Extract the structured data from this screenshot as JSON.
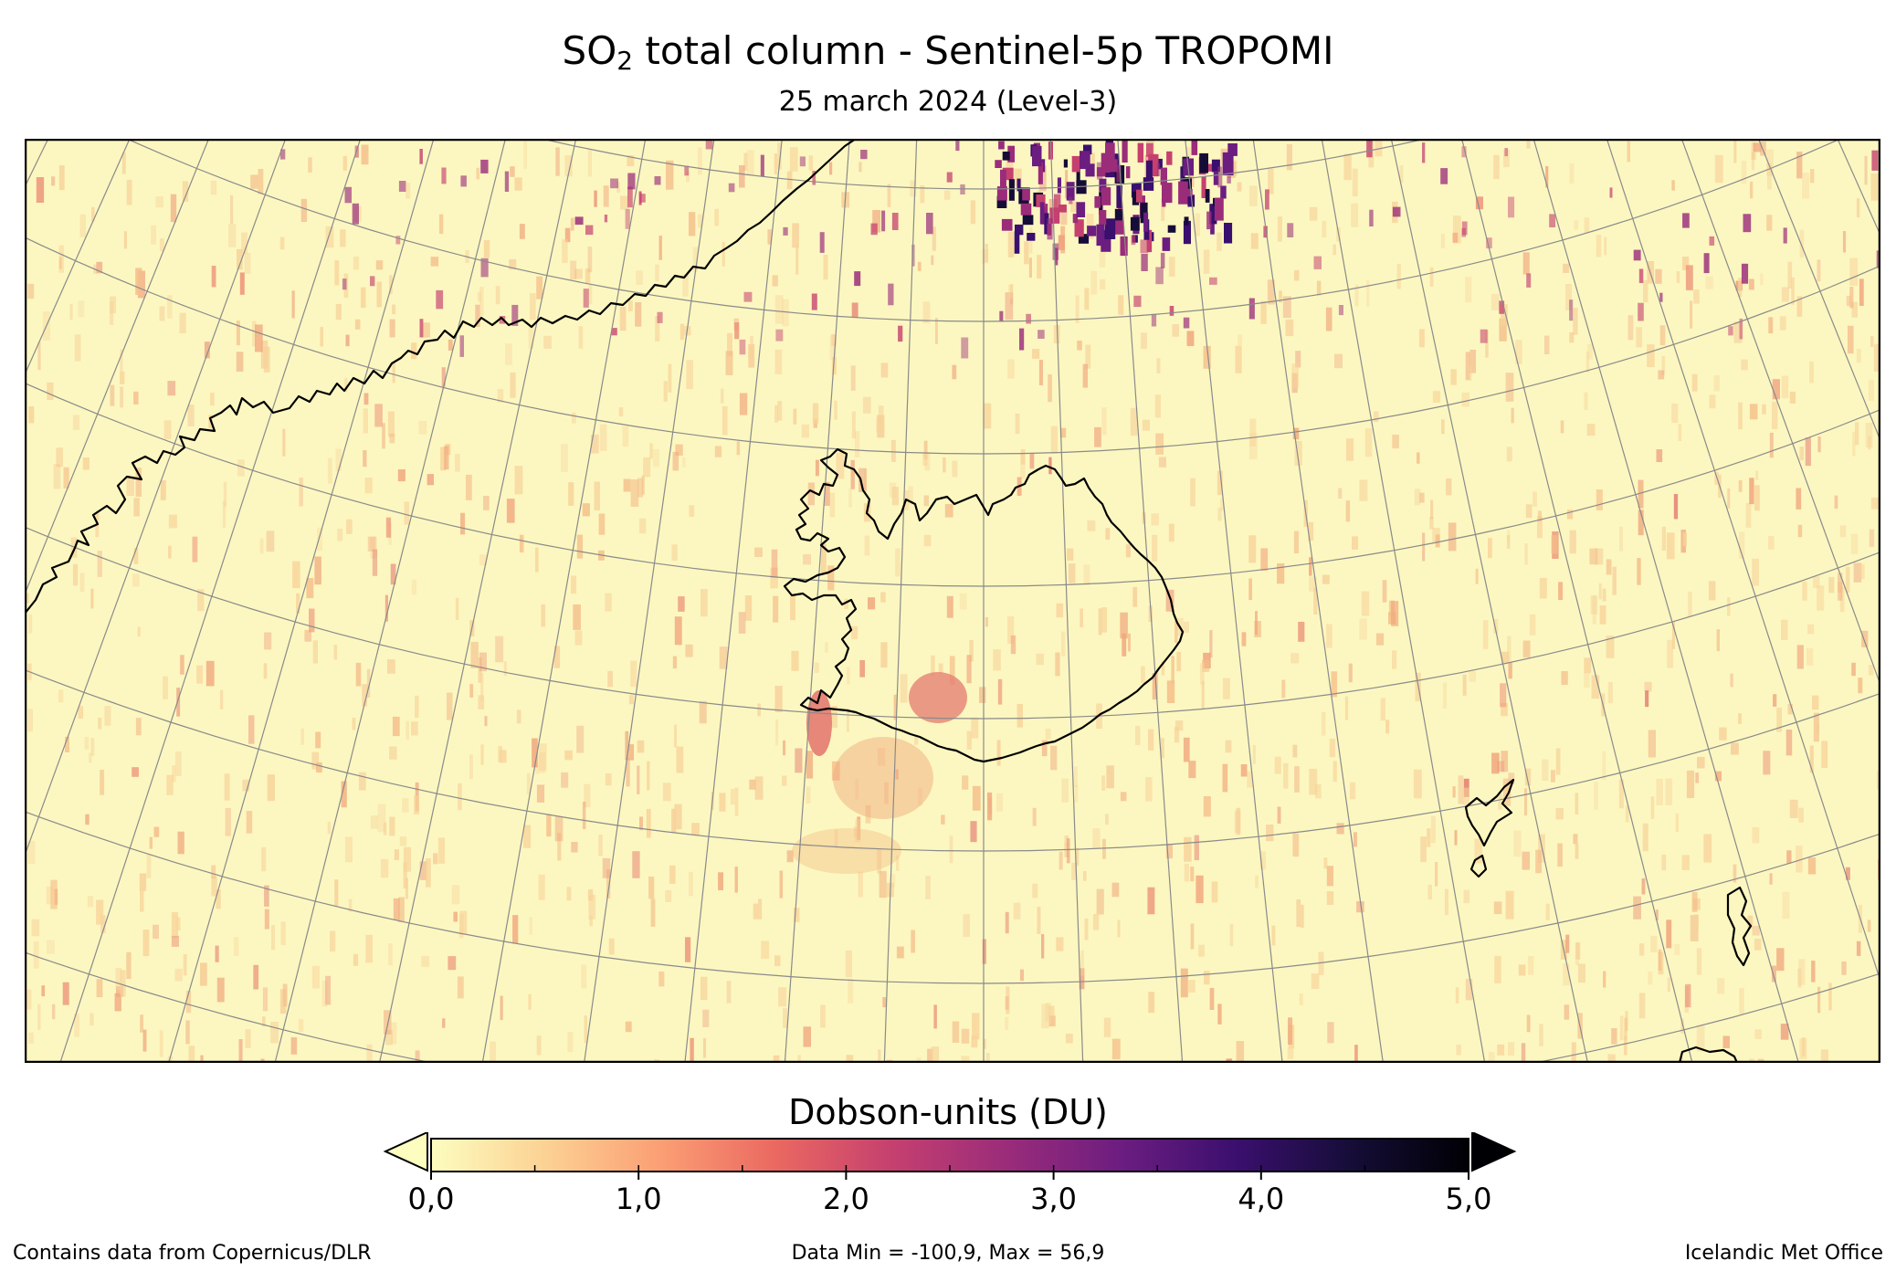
{
  "header": {
    "title_prefix": "SO",
    "title_sub": "2",
    "title_suffix": " total column - Sentinel-5p TROPOMI",
    "subtitle": "25 march 2024 (Level-3)"
  },
  "colorbar": {
    "label": "Dobson-units (DU)",
    "min": 0,
    "max": 5,
    "ticks": [
      "0,0",
      "1,0",
      "2,0",
      "3,0",
      "4,0",
      "5,0"
    ],
    "colormap": "magma_r",
    "extend": "both",
    "colors": [
      "#fcfdbf",
      "#fcd193",
      "#fb9e74",
      "#ea6861",
      "#c5406f",
      "#9a2c7a",
      "#6b1d80",
      "#3a0f6d",
      "#150d37",
      "#000004"
    ]
  },
  "footer": {
    "left": "Contains data from Copernicus/DLR",
    "center": "Data Min = -100,9, Max = 56,9",
    "right": "Icelandic Met Office"
  },
  "map": {
    "background_color": "#fcf7c0",
    "coastline_color": "#000000",
    "graticule_color": "#8a8a8a",
    "regions": [
      "Greenland (east coast)",
      "Iceland",
      "Faroe Islands",
      "Shetland"
    ]
  }
}
